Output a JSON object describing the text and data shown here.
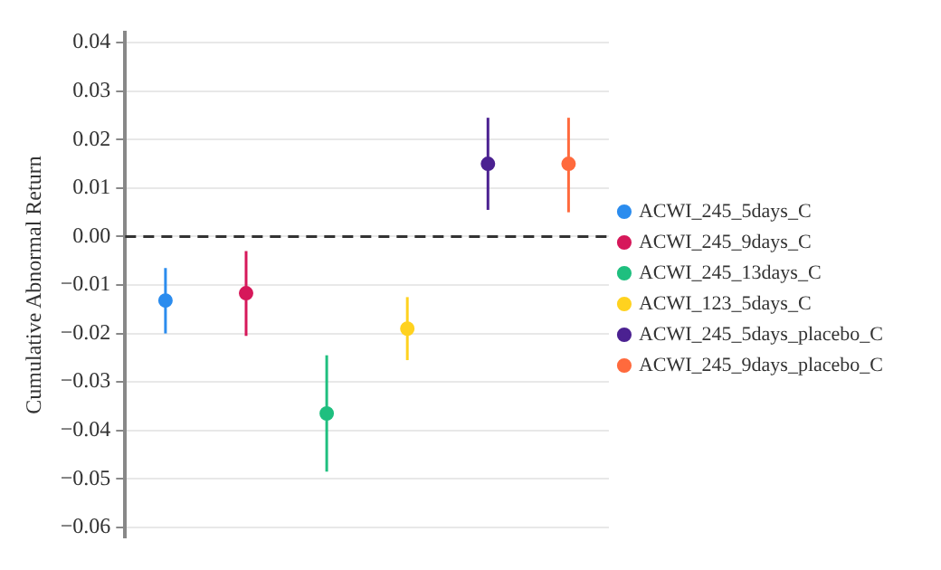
{
  "chart_data": {
    "type": "scatter",
    "ylabel": "Cumulative Abnormal Return",
    "categories": [
      null,
      null,
      null,
      null,
      null,
      null
    ],
    "series": [
      {
        "name": "ACWI_245_5days_C",
        "color": "#2b8cee",
        "values": [
          -0.0132,
          null,
          null,
          null,
          null,
          null
        ],
        "errors": [
          [
            -0.02,
            -0.0065
          ],
          null,
          null,
          null,
          null,
          null
        ]
      },
      {
        "name": "ACWI_245_9days_C",
        "color": "#d6185a",
        "values": [
          null,
          -0.0117,
          null,
          null,
          null,
          null
        ],
        "errors": [
          null,
          [
            -0.0205,
            -0.003
          ],
          null,
          null,
          null,
          null
        ]
      },
      {
        "name": "ACWI_245_13days_C",
        "color": "#1fbf7f",
        "values": [
          null,
          null,
          -0.0365,
          null,
          null,
          null
        ],
        "errors": [
          null,
          null,
          [
            -0.0485,
            -0.0245
          ],
          null,
          null,
          null
        ]
      },
      {
        "name": "ACWI_123_5days_C",
        "color": "#ffd21f",
        "values": [
          null,
          null,
          null,
          -0.019,
          null,
          null
        ],
        "errors": [
          null,
          null,
          null,
          [
            -0.0255,
            -0.0125
          ],
          null,
          null
        ]
      },
      {
        "name": "ACWI_245_5days_placebo_C",
        "color": "#4b2191",
        "values": [
          null,
          null,
          null,
          null,
          0.015,
          null
        ],
        "errors": [
          null,
          null,
          null,
          null,
          [
            0.0055,
            0.0245
          ],
          null
        ]
      },
      {
        "name": "ACWI_245_9days_placebo_C",
        "color": "#ff6a3d",
        "values": [
          null,
          null,
          null,
          null,
          null,
          0.015
        ],
        "errors": [
          null,
          null,
          null,
          null,
          null,
          [
            0.005,
            0.0245
          ]
        ]
      }
    ],
    "ylim": [
      -0.062,
      0.042
    ],
    "yticks": [
      -0.06,
      -0.05,
      -0.04,
      -0.03,
      -0.02,
      -0.01,
      {
        "value": 0,
        "label": "0.00"
      },
      0.01,
      0.02,
      0.03,
      0.04
    ],
    "grid": "y",
    "legend": "right",
    "marker": "circle",
    "ref_lines": [
      {
        "axis": "y",
        "value": 0,
        "color": "#333333",
        "line_style": "dashed"
      }
    ]
  }
}
